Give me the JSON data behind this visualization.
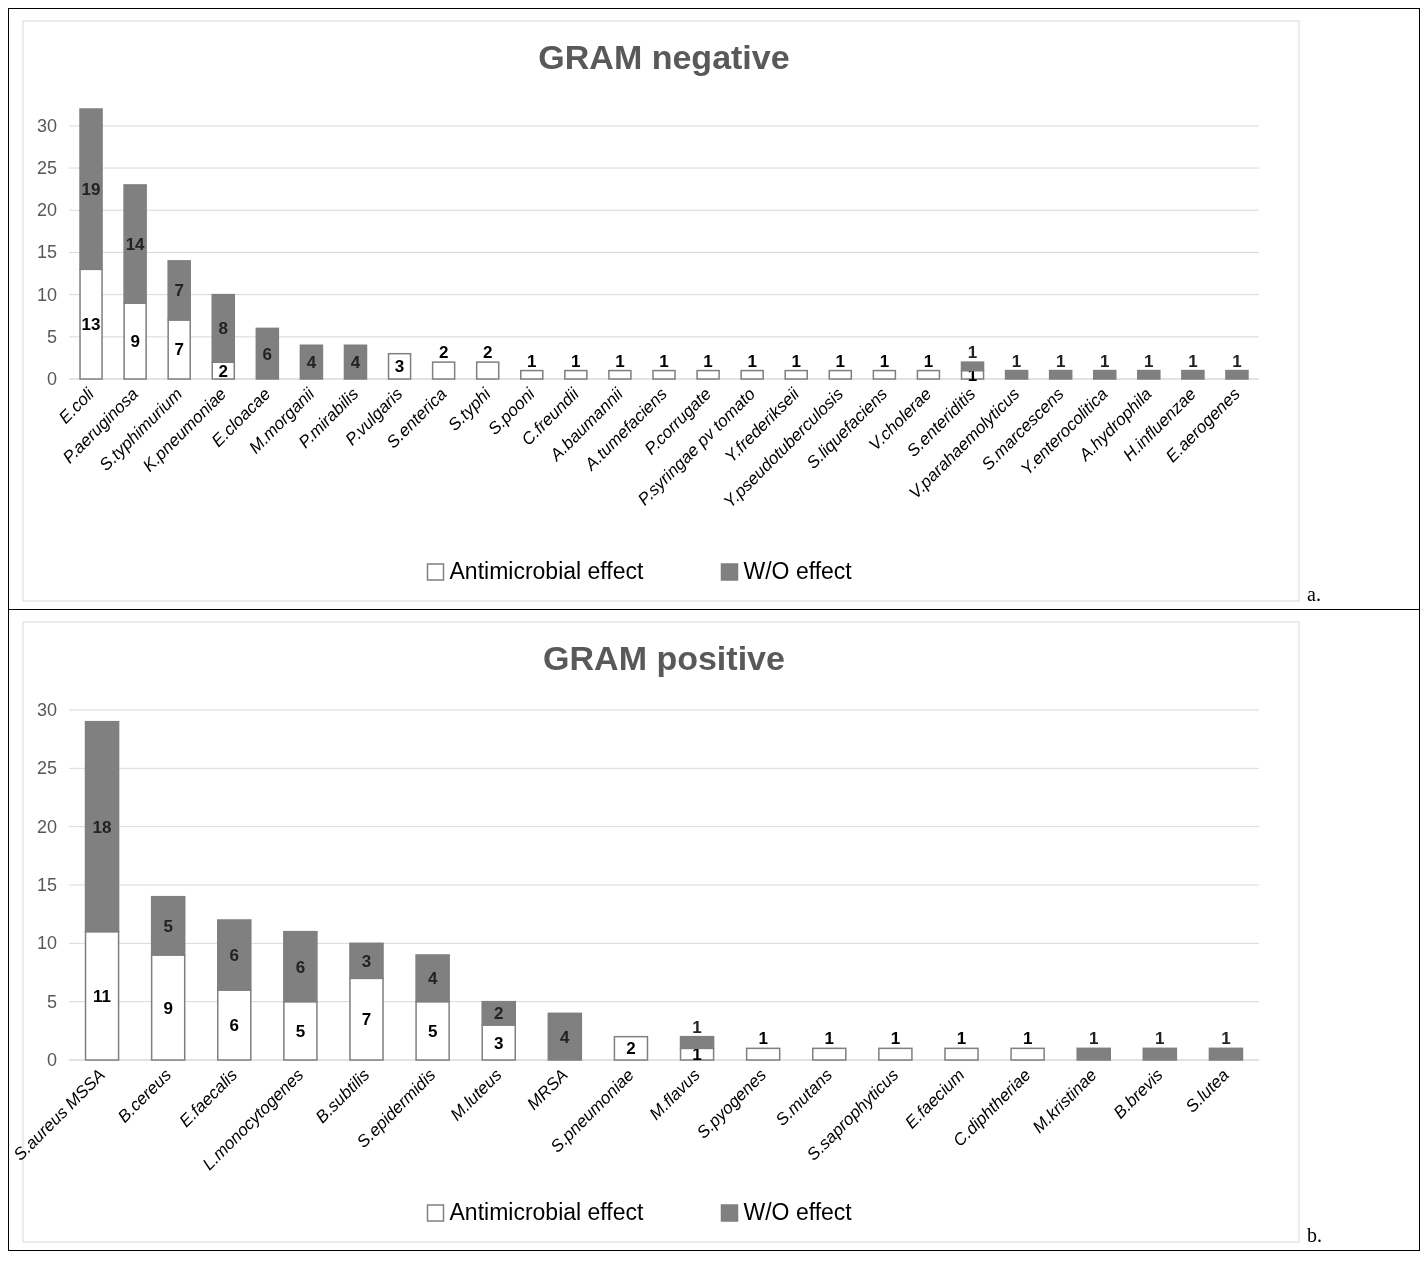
{
  "chart_data": [
    {
      "type": "bar",
      "stacked": true,
      "title": "GRAM negative",
      "categories": [
        "E.coli",
        "P.aeruginosa",
        "S.typhimurium",
        "K.pneumoniae",
        "E.cloacae",
        "M.morganii",
        "P.mirabilis",
        "P.vulgaris",
        "S.enterica",
        "S.typhi",
        "S.pooni",
        "C.freundii",
        "A.baumannii",
        "A.tumefaciens",
        "P.corrugate",
        "P.syringae pv tomato",
        "Y.frederikseii",
        "Y.pseudotuberculosis",
        "S.liquefaciens",
        "V.cholerae",
        "S.enteriditis",
        "V.parahaemolyticus",
        "S.marcescens",
        "Y.enterocolitica",
        "A.hydrophila",
        "H.influenzae",
        "E.aerogenes"
      ],
      "series": [
        {
          "name": "Antimicrobial effect",
          "color": "#ffffff",
          "values": [
            13,
            9,
            7,
            2,
            null,
            null,
            null,
            3,
            2,
            2,
            1,
            1,
            1,
            1,
            1,
            1,
            1,
            1,
            1,
            1,
            1,
            null,
            null,
            null,
            null,
            null,
            null
          ]
        },
        {
          "name": "W/O effect",
          "color": "#808080",
          "values": [
            19,
            14,
            7,
            8,
            6,
            4,
            4,
            null,
            null,
            null,
            null,
            null,
            null,
            null,
            null,
            null,
            null,
            null,
            null,
            null,
            1,
            1,
            1,
            1,
            1,
            1,
            1
          ]
        }
      ],
      "ylim": [
        0,
        32
      ],
      "yticks": [
        0,
        5,
        10,
        15,
        20,
        25,
        30
      ],
      "grid": "y",
      "legend": "bottom",
      "data_labels": true,
      "annotations": [
        "a."
      ]
    },
    {
      "type": "bar",
      "stacked": true,
      "title": "GRAM positive",
      "categories": [
        "S.aureus MSSA",
        "B.cereus",
        "E.faecalis",
        "L.monocytogenes",
        "B.subtilis",
        "S.epidermidis",
        "M.luteus",
        "MRSA",
        "S.pneumoniae",
        "M.flavus",
        "S.pyogenes",
        "S.mutans",
        "S.saprophyticus",
        "E.faecium",
        "C.diphtheriae",
        "M.kristinae",
        "B.brevis",
        "S.lutea"
      ],
      "series": [
        {
          "name": "Antimicrobial effect",
          "color": "#ffffff",
          "values": [
            11,
            9,
            6,
            5,
            7,
            5,
            3,
            null,
            2,
            1,
            1,
            1,
            1,
            1,
            1,
            null,
            null,
            null
          ]
        },
        {
          "name": "W/O effect",
          "color": "#808080",
          "values": [
            18,
            5,
            6,
            6,
            3,
            4,
            2,
            4,
            null,
            1,
            null,
            null,
            null,
            null,
            null,
            1,
            1,
            1
          ]
        }
      ],
      "ylim": [
        0,
        30
      ],
      "yticks": [
        0,
        5,
        10,
        15,
        20,
        25,
        30
      ],
      "grid": "y",
      "legend": "bottom",
      "data_labels": true,
      "annotations": [
        "b."
      ]
    }
  ]
}
